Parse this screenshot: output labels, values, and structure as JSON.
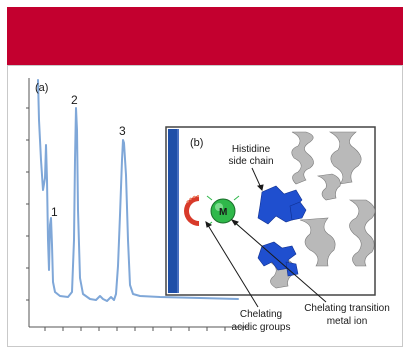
{
  "panel_a": {
    "label": "(a)",
    "peaks": [
      "1",
      "2",
      "3"
    ]
  },
  "panel_b": {
    "label": "(b)",
    "metal_symbol": "M",
    "annotations": {
      "histidine_line1": "Histidine",
      "histidine_line2": "side chain",
      "metal_line1": "Chelating transition",
      "metal_line2": "metal ion",
      "acidic_line1": "Chelating",
      "acidic_line2": "acidic groups"
    }
  },
  "colors": {
    "header": "#c3002f",
    "trace": "#7fa7d8",
    "membrane": "#1f4fa8",
    "protein_helix": "#b9b9b9",
    "histidine": "#1f4fcf",
    "metal_ion": "#2fb84a",
    "acidic_groups": "#d83a2a"
  }
}
